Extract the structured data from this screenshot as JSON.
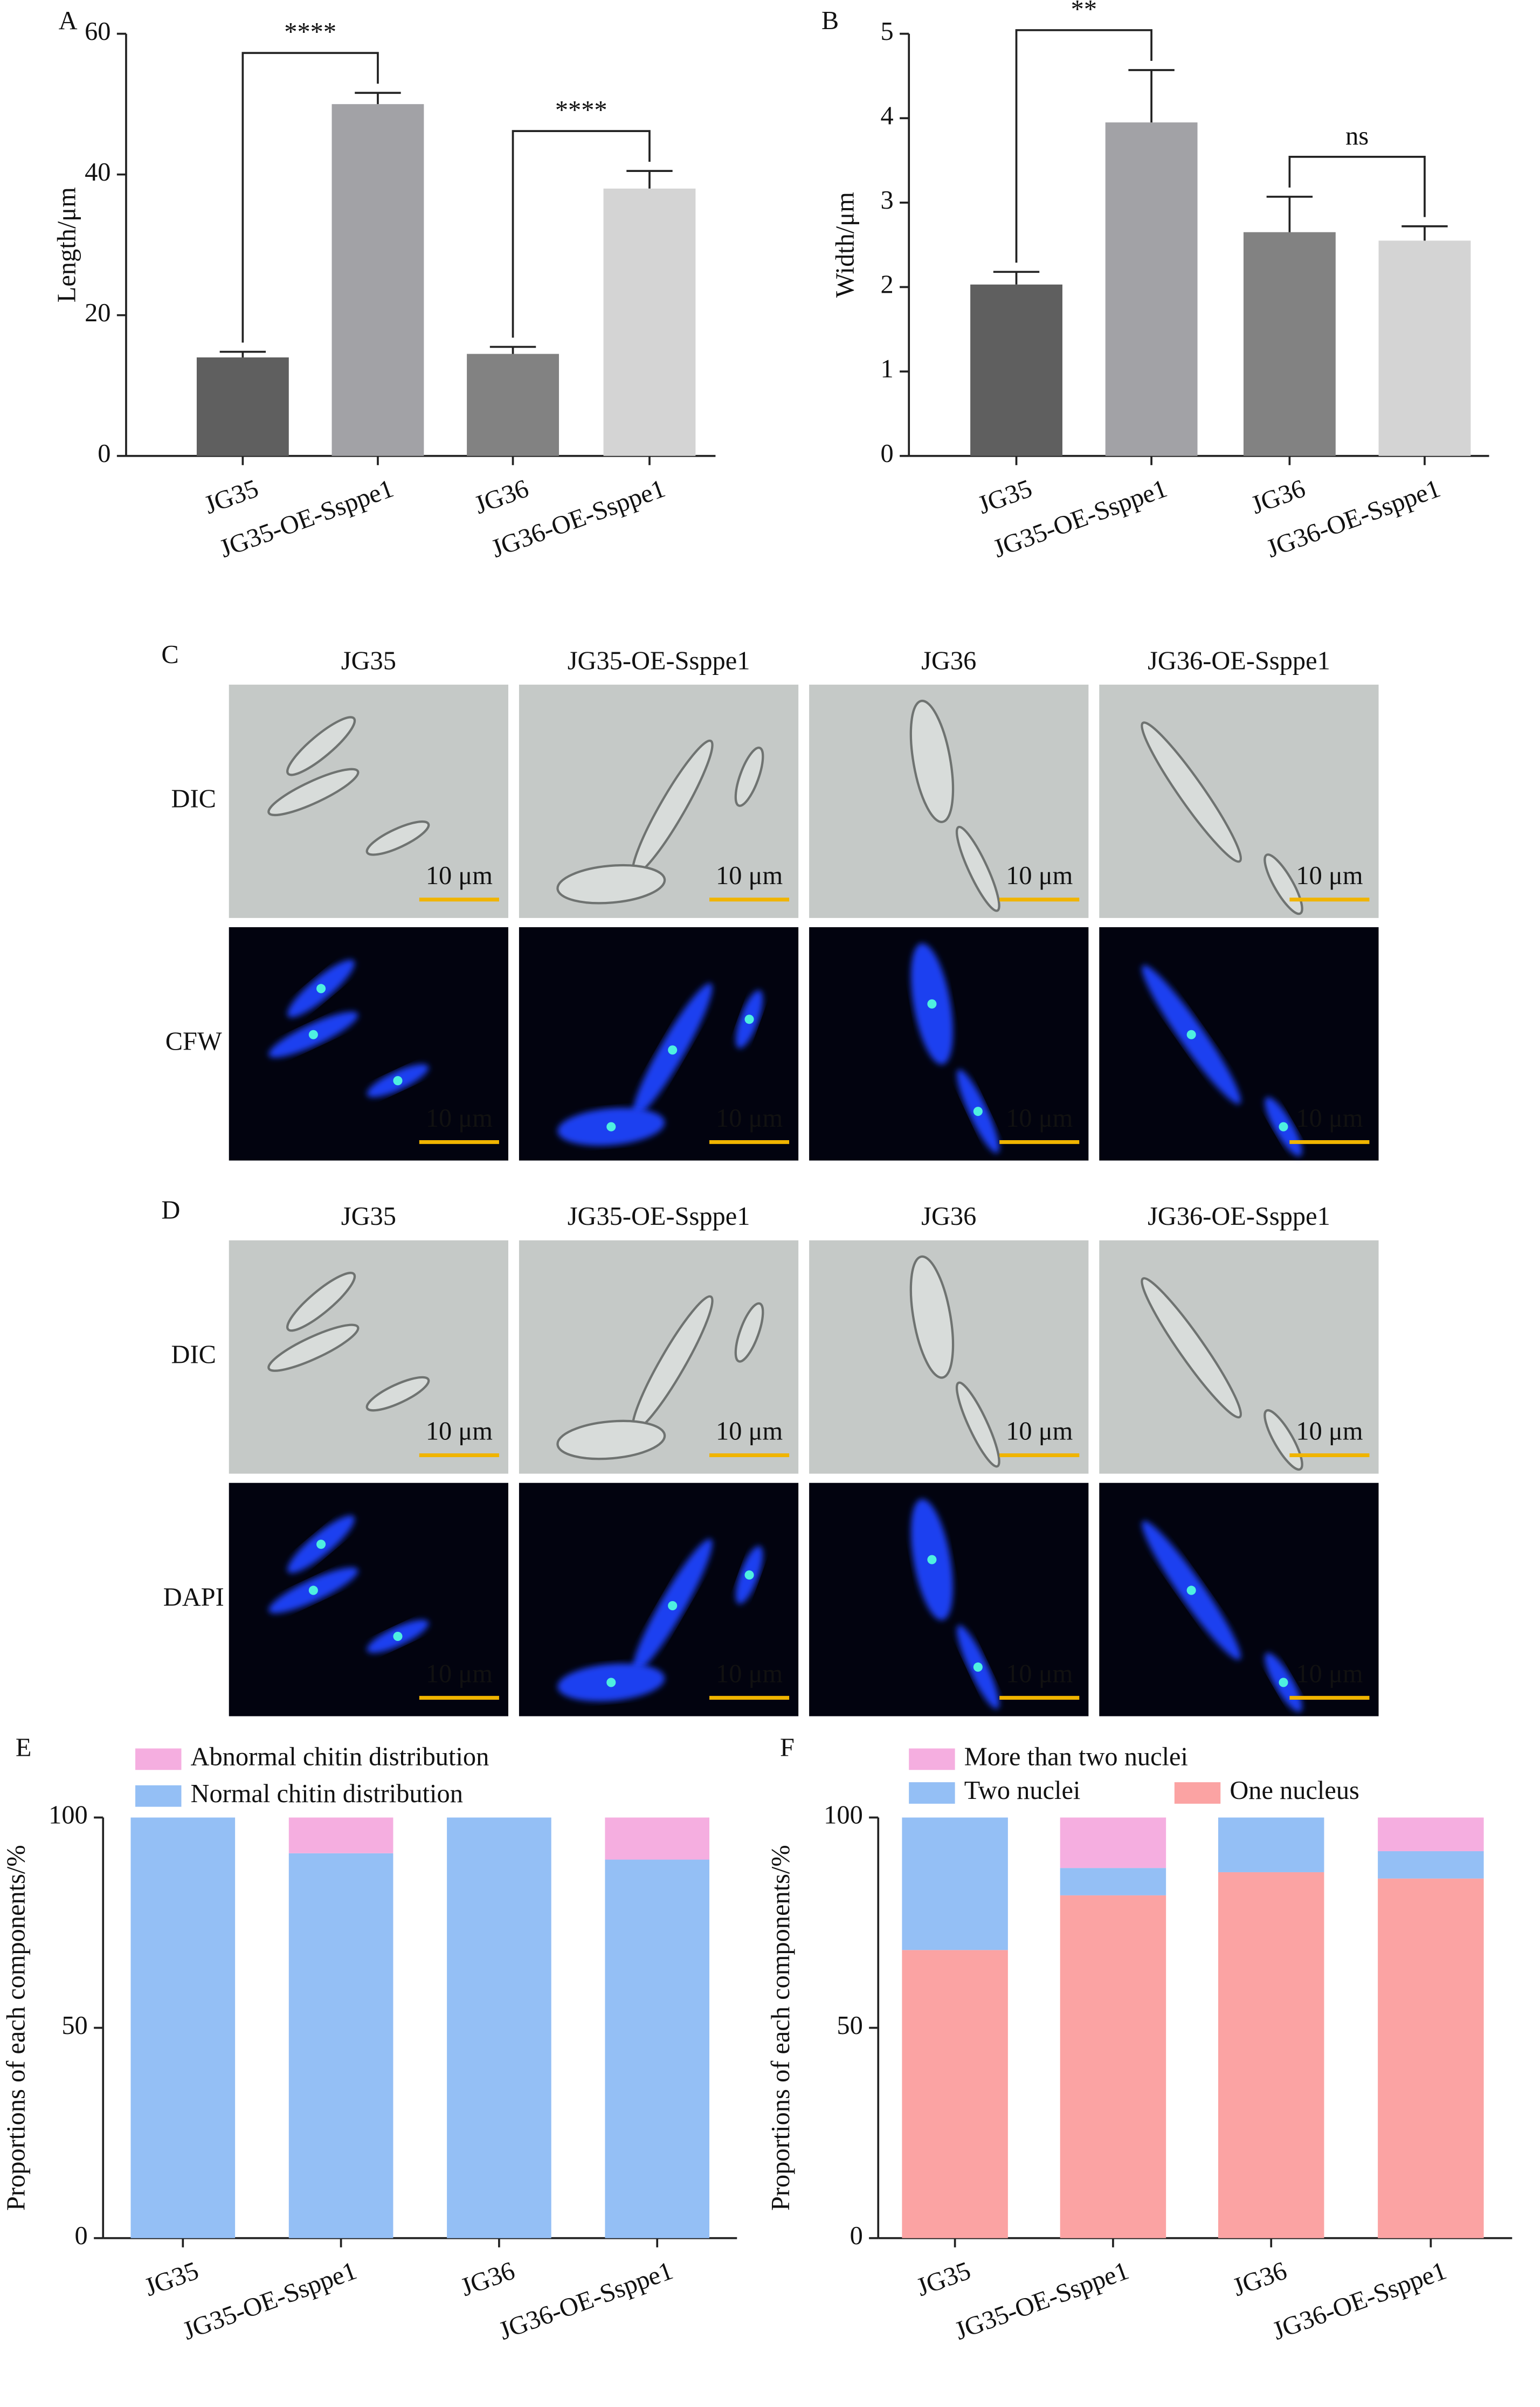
{
  "chart_data": [
    {
      "type": "bar",
      "panel_label": "A",
      "y_label": "Length/μm",
      "categories": [
        "JG35",
        "JG35-OE-Ssppe1",
        "JG36",
        "JG36-OE-Ssppe1"
      ],
      "values": [
        14,
        50,
        14.5,
        38
      ],
      "errors": [
        0.8,
        1.6,
        1,
        2.5
      ],
      "colors": [
        "#5f5f5f",
        "#a2a2a6",
        "#828282",
        "#d4d4d4"
      ],
      "ylim": [
        0,
        60
      ],
      "yticks": [
        0,
        20,
        40,
        60
      ],
      "annotations": [
        {
          "text": "****",
          "between": [
            "JG35",
            "JG35-OE-Ssppe1"
          ]
        },
        {
          "text": "****",
          "between": [
            "JG36",
            "JG36-OE-Ssppe1"
          ]
        }
      ]
    },
    {
      "type": "bar",
      "panel_label": "B",
      "y_label": "Width/μm",
      "categories": [
        "JG35",
        "JG35-OE-Ssppe1",
        "JG36",
        "JG36-OE-Ssppe1"
      ],
      "values": [
        2.03,
        3.95,
        2.65,
        2.55
      ],
      "errors": [
        0.15,
        0.62,
        0.42,
        0.17
      ],
      "colors": [
        "#5f5f5f",
        "#a2a2a6",
        "#828282",
        "#d4d4d4"
      ],
      "ylim": [
        0,
        5
      ],
      "yticks": [
        0,
        1,
        2,
        3,
        4,
        5
      ],
      "annotations": [
        {
          "text": "**",
          "between": [
            "JG35",
            "JG35-OE-Ssppe1"
          ]
        },
        {
          "text": "ns",
          "between": [
            "JG36",
            "JG36-OE-Ssppe1"
          ]
        }
      ]
    },
    {
      "type": "stacked_bar",
      "panel_label": "E",
      "y_label": "Proportions of each components/%",
      "categories": [
        "JG35",
        "JG35-OE-Ssppe1",
        "JG36",
        "JG36-OE-Ssppe1"
      ],
      "series": [
        {
          "name": "Normal chitin distribution",
          "color": "#94bff5",
          "values": [
            100,
            91.5,
            100,
            90
          ]
        },
        {
          "name": "Abnormal chitin distribution",
          "color": "#f5aee0",
          "values": [
            0,
            8.5,
            0,
            10
          ]
        }
      ],
      "ylim": [
        0,
        100
      ],
      "yticks": [
        0,
        50,
        100
      ]
    },
    {
      "type": "stacked_bar",
      "panel_label": "F",
      "y_label": "Proportions of each components/%",
      "categories": [
        "JG35",
        "JG35-OE-Ssppe1",
        "JG36",
        "JG36-OE-Ssppe1"
      ],
      "series": [
        {
          "name": "One nucleus",
          "color": "#fba3a3",
          "values": [
            68.5,
            81.5,
            87,
            85.5
          ]
        },
        {
          "name": "Two nuclei",
          "color": "#94bff5",
          "values": [
            31.5,
            6.5,
            13,
            6.5
          ]
        },
        {
          "name": "More than two nuclei",
          "color": "#f5aee0",
          "values": [
            0,
            12,
            0,
            8
          ]
        }
      ],
      "ylim": [
        0,
        100
      ],
      "yticks": [
        0,
        50,
        100
      ]
    }
  ],
  "panel_c": {
    "label": "C",
    "columns": [
      "JG35",
      "JG35-OE-Ssppe1",
      "JG36",
      "JG36-OE-Ssppe1"
    ],
    "rows": [
      "DIC",
      "CFW"
    ],
    "scale_bar": "10 μm"
  },
  "panel_d": {
    "label": "D",
    "columns": [
      "JG35",
      "JG35-OE-Ssppe1",
      "JG36",
      "JG36-OE-Ssppe1"
    ],
    "rows": [
      "DIC",
      "DAPI"
    ],
    "scale_bar": "10 μm"
  }
}
